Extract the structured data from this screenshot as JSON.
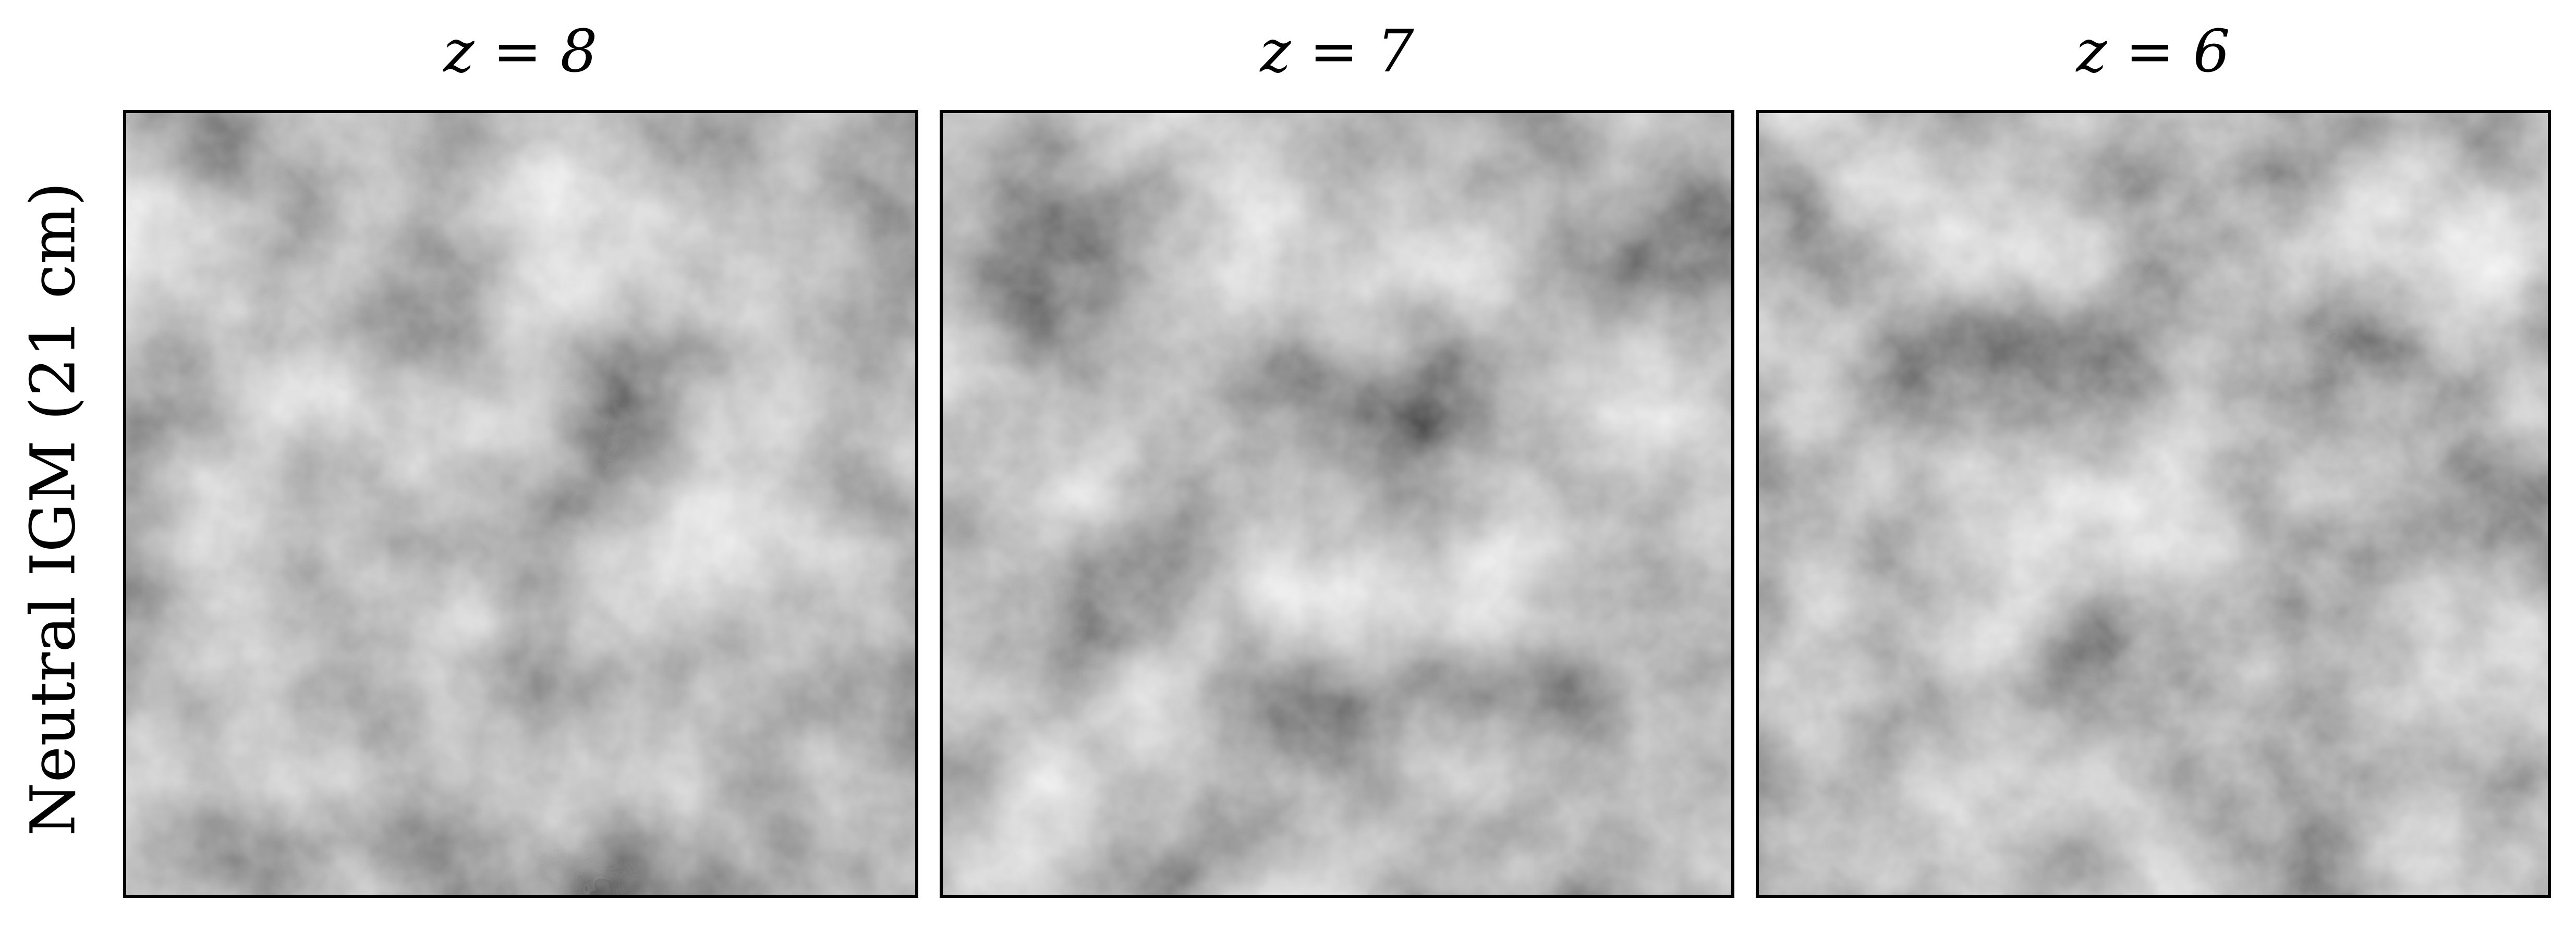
{
  "y_label": "Neutral IGM (21 cm)",
  "panels": [
    {
      "title": "z = 8"
    },
    {
      "title": "z = 7"
    },
    {
      "title": "z = 6"
    }
  ]
}
